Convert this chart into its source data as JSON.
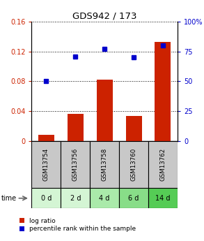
{
  "title": "GDS942 / 173",
  "samples": [
    "GSM13754",
    "GSM13756",
    "GSM13758",
    "GSM13760",
    "GSM13762"
  ],
  "time_labels": [
    "0 d",
    "2 d",
    "4 d",
    "6 d",
    "14 d"
  ],
  "log_ratio": [
    0.008,
    0.036,
    0.082,
    0.034,
    0.133
  ],
  "percentile_rank": [
    0.5,
    0.71,
    0.77,
    0.7,
    0.8
  ],
  "bar_color": "#cc2200",
  "dot_color": "#0000cc",
  "ylim_left": [
    0,
    0.16
  ],
  "ylim_right": [
    0,
    1.0
  ],
  "yticks_left": [
    0,
    0.04,
    0.08,
    0.12,
    0.16
  ],
  "ytick_labels_left": [
    "0",
    "0.04",
    "0.08",
    "0.12",
    "0.16"
  ],
  "yticks_right": [
    0,
    0.25,
    0.5,
    0.75,
    1.0
  ],
  "ytick_labels_right": [
    "0",
    "25",
    "50",
    "75",
    "100%"
  ],
  "sample_bg_color": "#c8c8c8",
  "time_bg_colors": [
    "#d4f5d4",
    "#d4f5d4",
    "#aaeaaa",
    "#88dd88",
    "#55cc55"
  ],
  "legend_labels": [
    "log ratio",
    "percentile rank within the sample"
  ]
}
